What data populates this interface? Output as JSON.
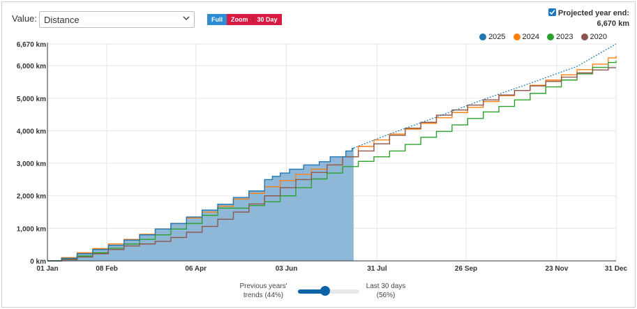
{
  "controls": {
    "value_label": "Value:",
    "value_selected": "Distance",
    "range_buttons": [
      "Full",
      "Zoom",
      "30 Day"
    ]
  },
  "projection": {
    "checked": true,
    "label": "Projected year end:",
    "value": "6,670 km"
  },
  "slider": {
    "left_label_1": "Previous years'",
    "left_label_2": "trends (44%)",
    "right_label_1": "Last 30 days",
    "right_label_2": "(56%)",
    "position_fraction": 0.44
  },
  "chart_data": {
    "type": "line",
    "x_range": [
      "01 Jan",
      "31 Dec"
    ],
    "x_day_range": [
      1,
      365
    ],
    "x_ticks": [
      {
        "label": "01 Jan",
        "day": 1
      },
      {
        "label": "08 Feb",
        "day": 39
      },
      {
        "label": "06 Apr",
        "day": 96
      },
      {
        "label": "03 Jun",
        "day": 154
      },
      {
        "label": "31 Jul",
        "day": 212
      },
      {
        "label": "26 Sep",
        "day": 269
      },
      {
        "label": "23 Nov",
        "day": 327
      },
      {
        "label": "31 Dec",
        "day": 365
      }
    ],
    "y_range": [
      0,
      6670
    ],
    "y_ticks": [
      {
        "label": "0 km",
        "value": 0
      },
      {
        "label": "1,000 km",
        "value": 1000
      },
      {
        "label": "2,000 km",
        "value": 2000
      },
      {
        "label": "3,000 km",
        "value": 3000
      },
      {
        "label": "4,000 km",
        "value": 4000
      },
      {
        "label": "5,000 km",
        "value": 5000
      },
      {
        "label": "6,000 km",
        "value": 6000
      },
      {
        "label": "6,670 km",
        "value": 6670
      }
    ],
    "grid": true,
    "legend_position": "top-right",
    "series": [
      {
        "name": "2025",
        "color": "#1f77b4",
        "style": "area",
        "points": [
          [
            1,
            0
          ],
          [
            10,
            80
          ],
          [
            20,
            220
          ],
          [
            30,
            350
          ],
          [
            40,
            480
          ],
          [
            50,
            640
          ],
          [
            60,
            800
          ],
          [
            70,
            980
          ],
          [
            80,
            1150
          ],
          [
            90,
            1350
          ],
          [
            100,
            1560
          ],
          [
            110,
            1740
          ],
          [
            120,
            1950
          ],
          [
            130,
            2150
          ],
          [
            140,
            2500
          ],
          [
            145,
            2600
          ],
          [
            150,
            2700
          ],
          [
            156,
            2820
          ],
          [
            165,
            2950
          ],
          [
            175,
            3050
          ],
          [
            182,
            3200
          ],
          [
            192,
            3380
          ],
          [
            196,
            3460
          ],
          [
            197,
            3470
          ]
        ]
      },
      {
        "name": "2024",
        "color": "#ff7f0e",
        "style": "line",
        "points": [
          [
            1,
            0
          ],
          [
            10,
            100
          ],
          [
            20,
            250
          ],
          [
            30,
            380
          ],
          [
            40,
            520
          ],
          [
            50,
            660
          ],
          [
            60,
            820
          ],
          [
            70,
            980
          ],
          [
            80,
            1150
          ],
          [
            90,
            1320
          ],
          [
            100,
            1500
          ],
          [
            110,
            1680
          ],
          [
            120,
            1900
          ],
          [
            130,
            2080
          ],
          [
            140,
            2280
          ],
          [
            150,
            2470
          ],
          [
            160,
            2660
          ],
          [
            170,
            2820
          ],
          [
            180,
            2950
          ],
          [
            190,
            3200
          ],
          [
            200,
            3520
          ],
          [
            210,
            3720
          ],
          [
            220,
            3900
          ],
          [
            230,
            4050
          ],
          [
            240,
            4230
          ],
          [
            250,
            4400
          ],
          [
            260,
            4560
          ],
          [
            270,
            4720
          ],
          [
            280,
            4900
          ],
          [
            290,
            5080
          ],
          [
            300,
            5240
          ],
          [
            310,
            5400
          ],
          [
            320,
            5560
          ],
          [
            330,
            5720
          ],
          [
            340,
            5880
          ],
          [
            350,
            6050
          ],
          [
            360,
            6240
          ],
          [
            365,
            6300
          ]
        ]
      },
      {
        "name": "2023",
        "color": "#2ca02c",
        "style": "line",
        "points": [
          [
            1,
            0
          ],
          [
            10,
            50
          ],
          [
            20,
            150
          ],
          [
            30,
            250
          ],
          [
            40,
            390
          ],
          [
            50,
            520
          ],
          [
            60,
            660
          ],
          [
            70,
            800
          ],
          [
            80,
            980
          ],
          [
            90,
            1150
          ],
          [
            100,
            1400
          ],
          [
            110,
            1620
          ],
          [
            120,
            1620
          ],
          [
            130,
            1700
          ],
          [
            140,
            1820
          ],
          [
            150,
            2000
          ],
          [
            160,
            2250
          ],
          [
            170,
            2520
          ],
          [
            180,
            2700
          ],
          [
            190,
            2900
          ],
          [
            200,
            3060
          ],
          [
            210,
            3200
          ],
          [
            220,
            3380
          ],
          [
            230,
            3580
          ],
          [
            240,
            3800
          ],
          [
            250,
            3980
          ],
          [
            260,
            4180
          ],
          [
            270,
            4380
          ],
          [
            280,
            4580
          ],
          [
            290,
            4750
          ],
          [
            300,
            4950
          ],
          [
            310,
            5150
          ],
          [
            320,
            5350
          ],
          [
            330,
            5560
          ],
          [
            340,
            5750
          ],
          [
            350,
            5950
          ],
          [
            360,
            6100
          ],
          [
            365,
            6150
          ]
        ]
      },
      {
        "name": "2020",
        "color": "#8c564b",
        "style": "line",
        "points": [
          [
            1,
            0
          ],
          [
            10,
            40
          ],
          [
            20,
            120
          ],
          [
            30,
            220
          ],
          [
            40,
            350
          ],
          [
            50,
            460
          ],
          [
            60,
            520
          ],
          [
            70,
            600
          ],
          [
            80,
            720
          ],
          [
            90,
            880
          ],
          [
            100,
            1060
          ],
          [
            110,
            1280
          ],
          [
            120,
            1500
          ],
          [
            130,
            1750
          ],
          [
            140,
            2000
          ],
          [
            150,
            2250
          ],
          [
            160,
            2500
          ],
          [
            170,
            2720
          ],
          [
            180,
            2950
          ],
          [
            190,
            3200
          ],
          [
            200,
            3380
          ],
          [
            210,
            3600
          ],
          [
            220,
            3860
          ],
          [
            230,
            4080
          ],
          [
            240,
            4260
          ],
          [
            250,
            4480
          ],
          [
            260,
            4640
          ],
          [
            270,
            4790
          ],
          [
            280,
            4950
          ],
          [
            290,
            5100
          ],
          [
            300,
            5240
          ],
          [
            310,
            5380
          ],
          [
            320,
            5520
          ],
          [
            330,
            5650
          ],
          [
            340,
            5780
          ],
          [
            350,
            5870
          ],
          [
            360,
            5940
          ],
          [
            365,
            5940
          ]
        ]
      },
      {
        "name": "Projection",
        "color": "#1f77b4",
        "style": "dotted",
        "points": [
          [
            197,
            3470
          ],
          [
            220,
            3900
          ],
          [
            250,
            4420
          ],
          [
            280,
            4960
          ],
          [
            310,
            5460
          ],
          [
            340,
            5980
          ],
          [
            365,
            6670
          ]
        ]
      }
    ]
  }
}
